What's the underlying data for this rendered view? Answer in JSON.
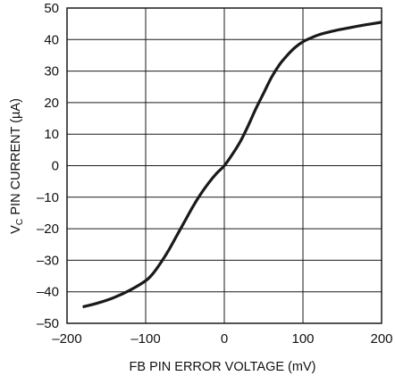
{
  "chart_data": {
    "type": "line",
    "xlabel": "FB PIN ERROR VOLTAGE (mV)",
    "ylabel": {
      "prefix": "V",
      "subscript": "C",
      "suffix": " PIN CURRENT (µA)"
    },
    "xlim": [
      -200,
      200
    ],
    "ylim": [
      -50,
      50
    ],
    "xticks": [
      -200,
      -100,
      0,
      100,
      200
    ],
    "xtick_labels": [
      "–200",
      "–100",
      "0",
      "100",
      "200"
    ],
    "yticks": [
      -50,
      -40,
      -30,
      -20,
      -10,
      0,
      10,
      20,
      30,
      40,
      50
    ],
    "ytick_labels": [
      "–50",
      "–40",
      "–30",
      "–20",
      "–10",
      "0",
      "10",
      "20",
      "30",
      "40",
      "50"
    ],
    "grid": true,
    "colors": {
      "line": "#1a1a1a",
      "grid": "#1a1a1a",
      "frame": "#1a1a1a"
    },
    "series": [
      {
        "x": [
          -180,
          -160,
          -140,
          -120,
          -100,
          -90,
          -80,
          -70,
          -60,
          -50,
          -40,
          -30,
          -20,
          -10,
          0,
          10,
          20,
          30,
          40,
          50,
          60,
          70,
          80,
          90,
          100,
          110,
          120,
          130,
          140,
          160,
          180,
          200
        ],
        "y": [
          -44.8,
          -43.5,
          -41.8,
          -39.5,
          -36.5,
          -34,
          -30.5,
          -26.5,
          -22,
          -17.5,
          -13,
          -9,
          -5.5,
          -2.5,
          0,
          3.5,
          7.5,
          12.5,
          18,
          23,
          28,
          32,
          35,
          37.5,
          39.3,
          40.5,
          41.5,
          42.2,
          42.8,
          43.8,
          44.7,
          45.5
        ]
      }
    ]
  }
}
